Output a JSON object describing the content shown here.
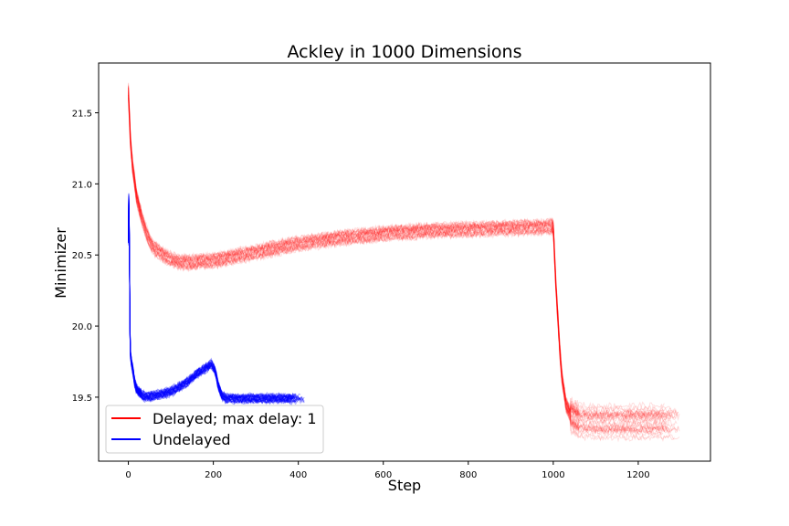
{
  "chart_data": {
    "type": "line",
    "title": "Ackley in 1000 Dimensions",
    "xlabel": "Step",
    "ylabel": "Minimizer",
    "xlim": [
      -70,
      1370
    ],
    "ylim": [
      19.05,
      21.85
    ],
    "xticks": [
      0,
      200,
      400,
      600,
      800,
      1000,
      1200
    ],
    "yticks": [
      19.5,
      20.0,
      20.5,
      21.0,
      21.5
    ],
    "ytick_labels": [
      "19.5",
      "20.0",
      "20.5",
      "21.0",
      "21.5"
    ],
    "grid": false,
    "legend_position": "lower-left",
    "series": [
      {
        "name": "Delayed; max delay: 1",
        "color": "#ff0000",
        "runs": 30,
        "x": [
          0,
          5,
          10,
          20,
          30,
          40,
          50,
          60,
          80,
          100,
          120,
          150,
          200,
          250,
          300,
          400,
          500,
          600,
          700,
          800,
          900,
          1000,
          1003,
          1006,
          1010,
          1015,
          1020,
          1030,
          1040,
          1060,
          1080,
          1100,
          1200,
          1280
        ],
        "y": [
          21.65,
          21.3,
          21.12,
          20.9,
          20.78,
          20.68,
          20.6,
          20.55,
          20.5,
          20.47,
          20.45,
          20.45,
          20.46,
          20.49,
          20.52,
          20.58,
          20.62,
          20.65,
          20.67,
          20.68,
          20.69,
          20.7,
          20.5,
          20.3,
          20.1,
          19.85,
          19.65,
          19.45,
          19.38,
          19.34,
          19.33,
          19.33,
          19.33,
          19.33
        ]
      },
      {
        "name": "Undelayed",
        "color": "#0000ff",
        "runs": 30,
        "x": [
          0,
          1,
          2,
          3,
          4,
          5,
          7,
          10,
          15,
          20,
          30,
          40,
          60,
          80,
          100,
          120,
          140,
          160,
          180,
          195,
          200,
          205,
          210,
          215,
          220,
          230,
          240,
          260,
          300,
          400
        ],
        "y": [
          20.6,
          20.9,
          20.7,
          20.3,
          19.95,
          19.8,
          19.75,
          19.7,
          19.6,
          19.55,
          19.52,
          19.5,
          19.51,
          19.52,
          19.54,
          19.57,
          19.61,
          19.66,
          19.7,
          19.73,
          19.71,
          19.68,
          19.6,
          19.55,
          19.51,
          19.49,
          19.49,
          19.49,
          19.49,
          19.49
        ]
      }
    ]
  }
}
